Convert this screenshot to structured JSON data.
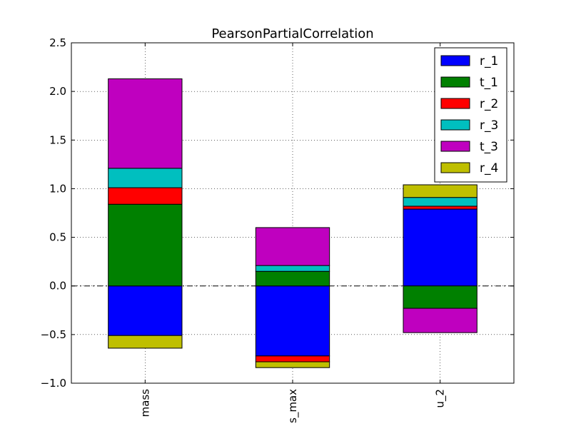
{
  "chart_data": {
    "type": "bar",
    "stacked": true,
    "title": "PearsonPartialCorrelation",
    "xlabel": "",
    "ylabel": "",
    "categories": [
      "mass",
      "s_max",
      "u_2"
    ],
    "ylim": [
      -1.0,
      2.5
    ],
    "yticks": [
      -1.0,
      -0.5,
      0.0,
      0.5,
      1.0,
      1.5,
      2.0,
      2.5
    ],
    "ytick_labels": [
      "−1.0",
      "−0.5",
      "0.0",
      "0.5",
      "1.0",
      "1.5",
      "2.0",
      "2.5"
    ],
    "grid": true,
    "zero_line": true,
    "legend_position": "top-right",
    "series": [
      {
        "name": "r_1",
        "color": "#0000ff",
        "values": [
          -0.51,
          -0.72,
          0.79
        ]
      },
      {
        "name": "t_1",
        "color": "#008000",
        "values": [
          0.84,
          0.15,
          -0.23
        ]
      },
      {
        "name": "r_2",
        "color": "#ff0000",
        "values": [
          0.17,
          -0.06,
          0.03
        ]
      },
      {
        "name": "r_3",
        "color": "#00bfbf",
        "values": [
          0.2,
          0.06,
          0.09
        ]
      },
      {
        "name": "t_3",
        "color": "#bf00bf",
        "values": [
          0.92,
          0.39,
          -0.25
        ]
      },
      {
        "name": "r_4",
        "color": "#bfbf00",
        "values": [
          -0.13,
          -0.06,
          0.13
        ]
      }
    ]
  }
}
